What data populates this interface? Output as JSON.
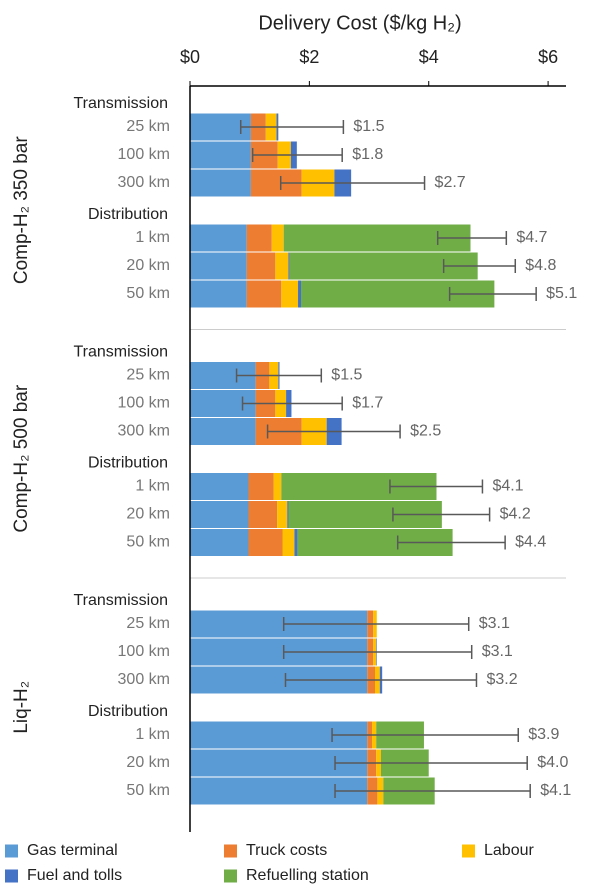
{
  "chart_data": {
    "type": "stacked-barh",
    "title": "Delivery Cost ($/kg H₂)",
    "xlim": [
      0,
      6.3
    ],
    "xticks": [
      {
        "value": 0,
        "label": "$0"
      },
      {
        "value": 2,
        "label": "$2"
      },
      {
        "value": 4,
        "label": "$4"
      },
      {
        "value": 6,
        "label": "$6"
      }
    ],
    "groups": [
      {
        "label": "Comp-H₂ 350 bar",
        "subgroups": [
          "Transmission",
          "Distribution"
        ]
      },
      {
        "label": "Comp-H₂ 500 bar",
        "subgroups": [
          "Transmission",
          "Distribution"
        ]
      },
      {
        "label": "Liq-H₂",
        "subgroups": [
          "Transmission",
          "Distribution"
        ]
      }
    ],
    "categories": [
      "25 km",
      "100 km",
      "300 km",
      "1 km",
      "20 km",
      "50 km",
      "25 km",
      "100 km",
      "300 km",
      "1 km",
      "20 km",
      "50 km",
      "25 km",
      "100 km",
      "300 km",
      "1 km",
      "20 km",
      "50 km"
    ],
    "series": [
      {
        "name": "Gas terminal",
        "color": "#5b9bd5",
        "values": [
          1.02,
          1.02,
          1.02,
          0.95,
          0.95,
          0.95,
          1.1,
          1.1,
          1.1,
          0.98,
          0.98,
          0.98,
          2.97,
          2.97,
          2.97,
          2.97,
          2.97,
          2.97
        ]
      },
      {
        "name": "Truck costs",
        "color": "#ed7d31",
        "values": [
          0.25,
          0.45,
          0.85,
          0.42,
          0.48,
          0.58,
          0.23,
          0.33,
          0.77,
          0.42,
          0.48,
          0.57,
          0.1,
          0.1,
          0.13,
          0.08,
          0.15,
          0.17
        ]
      },
      {
        "name": "Labour",
        "color": "#ffc000",
        "values": [
          0.18,
          0.22,
          0.55,
          0.2,
          0.22,
          0.28,
          0.15,
          0.18,
          0.42,
          0.13,
          0.17,
          0.2,
          0.06,
          0.05,
          0.08,
          0.07,
          0.08,
          0.1
        ]
      },
      {
        "name": "Fuel and tolls",
        "color": "#4472c4",
        "values": [
          0.03,
          0.1,
          0.28,
          0,
          0.02,
          0.05,
          0.02,
          0.09,
          0.25,
          0,
          0.02,
          0.05,
          0,
          0.01,
          0.04,
          0,
          0,
          0
        ]
      },
      {
        "name": "Refuelling station",
        "color": "#70ad47",
        "values": [
          0,
          0,
          0,
          3.13,
          3.15,
          3.24,
          0,
          0,
          0,
          2.6,
          2.57,
          2.6,
          0,
          0,
          0,
          0.8,
          0.8,
          0.86
        ]
      }
    ],
    "error_low": [
      0.85,
      1.05,
      1.52,
      4.15,
      4.25,
      4.35,
      0.78,
      0.88,
      1.3,
      3.35,
      3.4,
      3.48,
      1.57,
      1.57,
      1.6,
      2.38,
      2.43,
      2.43
    ],
    "error_high": [
      2.57,
      2.55,
      3.93,
      5.3,
      5.45,
      5.8,
      2.2,
      2.55,
      3.52,
      4.9,
      5.02,
      5.28,
      4.67,
      4.72,
      4.8,
      5.5,
      5.65,
      5.7
    ],
    "value_labels": [
      "$1.5",
      "$1.8",
      "$2.7",
      "$4.7",
      "$4.8",
      "$5.1",
      "$1.5",
      "$1.7",
      "$2.5",
      "$4.1",
      "$4.2",
      "$4.4",
      "$3.1",
      "$3.1",
      "$3.2",
      "$3.9",
      "$4.0",
      "$4.1"
    ],
    "error_color": "#595959"
  }
}
